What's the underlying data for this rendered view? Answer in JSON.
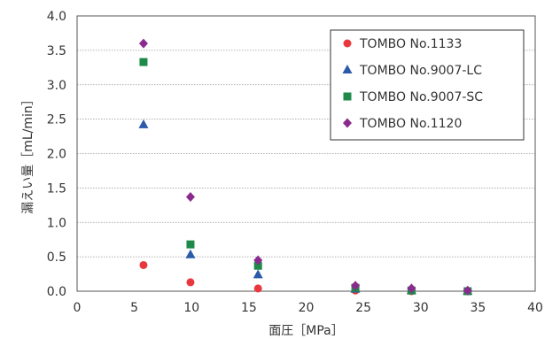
{
  "chart_data": {
    "type": "scatter",
    "xlabel": "面圧［MPa］",
    "ylabel": "漏えい量［mL/min］",
    "xlim": [
      0,
      40
    ],
    "ylim": [
      0,
      4.0
    ],
    "x_ticks": [
      "0",
      "5",
      "10",
      "15",
      "20",
      "25",
      "30",
      "35",
      "40"
    ],
    "y_ticks": [
      "0.0",
      "0.5",
      "1.0",
      "1.5",
      "2.0",
      "2.5",
      "3.0",
      "3.5",
      "4.0"
    ],
    "grid": "horizontal",
    "legend_position": "top-right",
    "series": [
      {
        "name": "TOMBO No.1133",
        "marker": "circle",
        "color": "#e8383d",
        "points": [
          [
            5.8,
            0.38
          ],
          [
            9.9,
            0.13
          ],
          [
            15.8,
            0.04
          ],
          [
            24.3,
            0.01
          ],
          [
            29.2,
            0.0
          ],
          [
            34.1,
            0.0
          ]
        ]
      },
      {
        "name": "TOMBO No.9007-LC",
        "marker": "triangle",
        "color": "#2a5aa8",
        "points": [
          [
            5.8,
            2.42
          ],
          [
            9.9,
            0.53
          ],
          [
            15.8,
            0.24
          ],
          [
            24.3,
            0.03
          ],
          [
            29.2,
            0.01
          ],
          [
            34.1,
            0.0
          ]
        ]
      },
      {
        "name": "TOMBO No.9007-SC",
        "marker": "square",
        "color": "#1e8a4a",
        "points": [
          [
            5.8,
            3.33
          ],
          [
            9.9,
            0.68
          ],
          [
            15.8,
            0.37
          ],
          [
            24.3,
            0.05
          ],
          [
            29.2,
            0.01
          ],
          [
            34.1,
            0.0
          ]
        ]
      },
      {
        "name": "TOMBO No.1120",
        "marker": "diamond",
        "color": "#8b2a8e",
        "points": [
          [
            5.8,
            3.6
          ],
          [
            9.9,
            1.37
          ],
          [
            15.8,
            0.45
          ],
          [
            24.3,
            0.08
          ],
          [
            29.2,
            0.04
          ],
          [
            34.1,
            0.01
          ]
        ]
      }
    ]
  }
}
